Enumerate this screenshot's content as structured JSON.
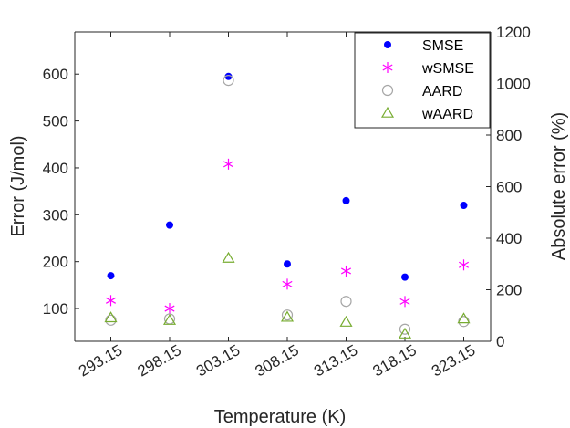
{
  "chart_data": {
    "type": "scatter",
    "categories": [
      "293.15",
      "298.15",
      "303.15",
      "308.15",
      "313.15",
      "318.15",
      "323.15"
    ],
    "xlabel": "Temperature (K)",
    "ylabel": "Error (J/mol)",
    "ylabel_right": "Absolute error (%)",
    "ylim": [
      30,
      690
    ],
    "ylim_right": [
      0,
      1200
    ],
    "yticks": [
      100,
      200,
      300,
      400,
      500,
      600
    ],
    "yticks_right": [
      0,
      200,
      400,
      600,
      800,
      1000,
      1200
    ],
    "grid": false,
    "legend_position": "top-right",
    "series": [
      {
        "name": "SMSE",
        "axis": "left",
        "marker": "dot",
        "color": "#0000ff",
        "values": [
          170,
          278,
          595,
          195,
          330,
          167,
          320
        ]
      },
      {
        "name": "wSMSE",
        "axis": "left",
        "marker": "asterisk",
        "color": "#ff00ff",
        "values": [
          117,
          100,
          408,
          152,
          180,
          115,
          193
        ]
      },
      {
        "name": "AARD",
        "axis": "right",
        "marker": "circle",
        "color": "#a6a6a6",
        "values": [
          82,
          87,
          1012,
          102,
          155,
          47,
          77
        ]
      },
      {
        "name": "wAARD",
        "axis": "right",
        "marker": "triangle",
        "color": "#77ac30",
        "values": [
          91,
          81,
          322,
          93,
          74,
          28,
          87
        ]
      }
    ]
  }
}
